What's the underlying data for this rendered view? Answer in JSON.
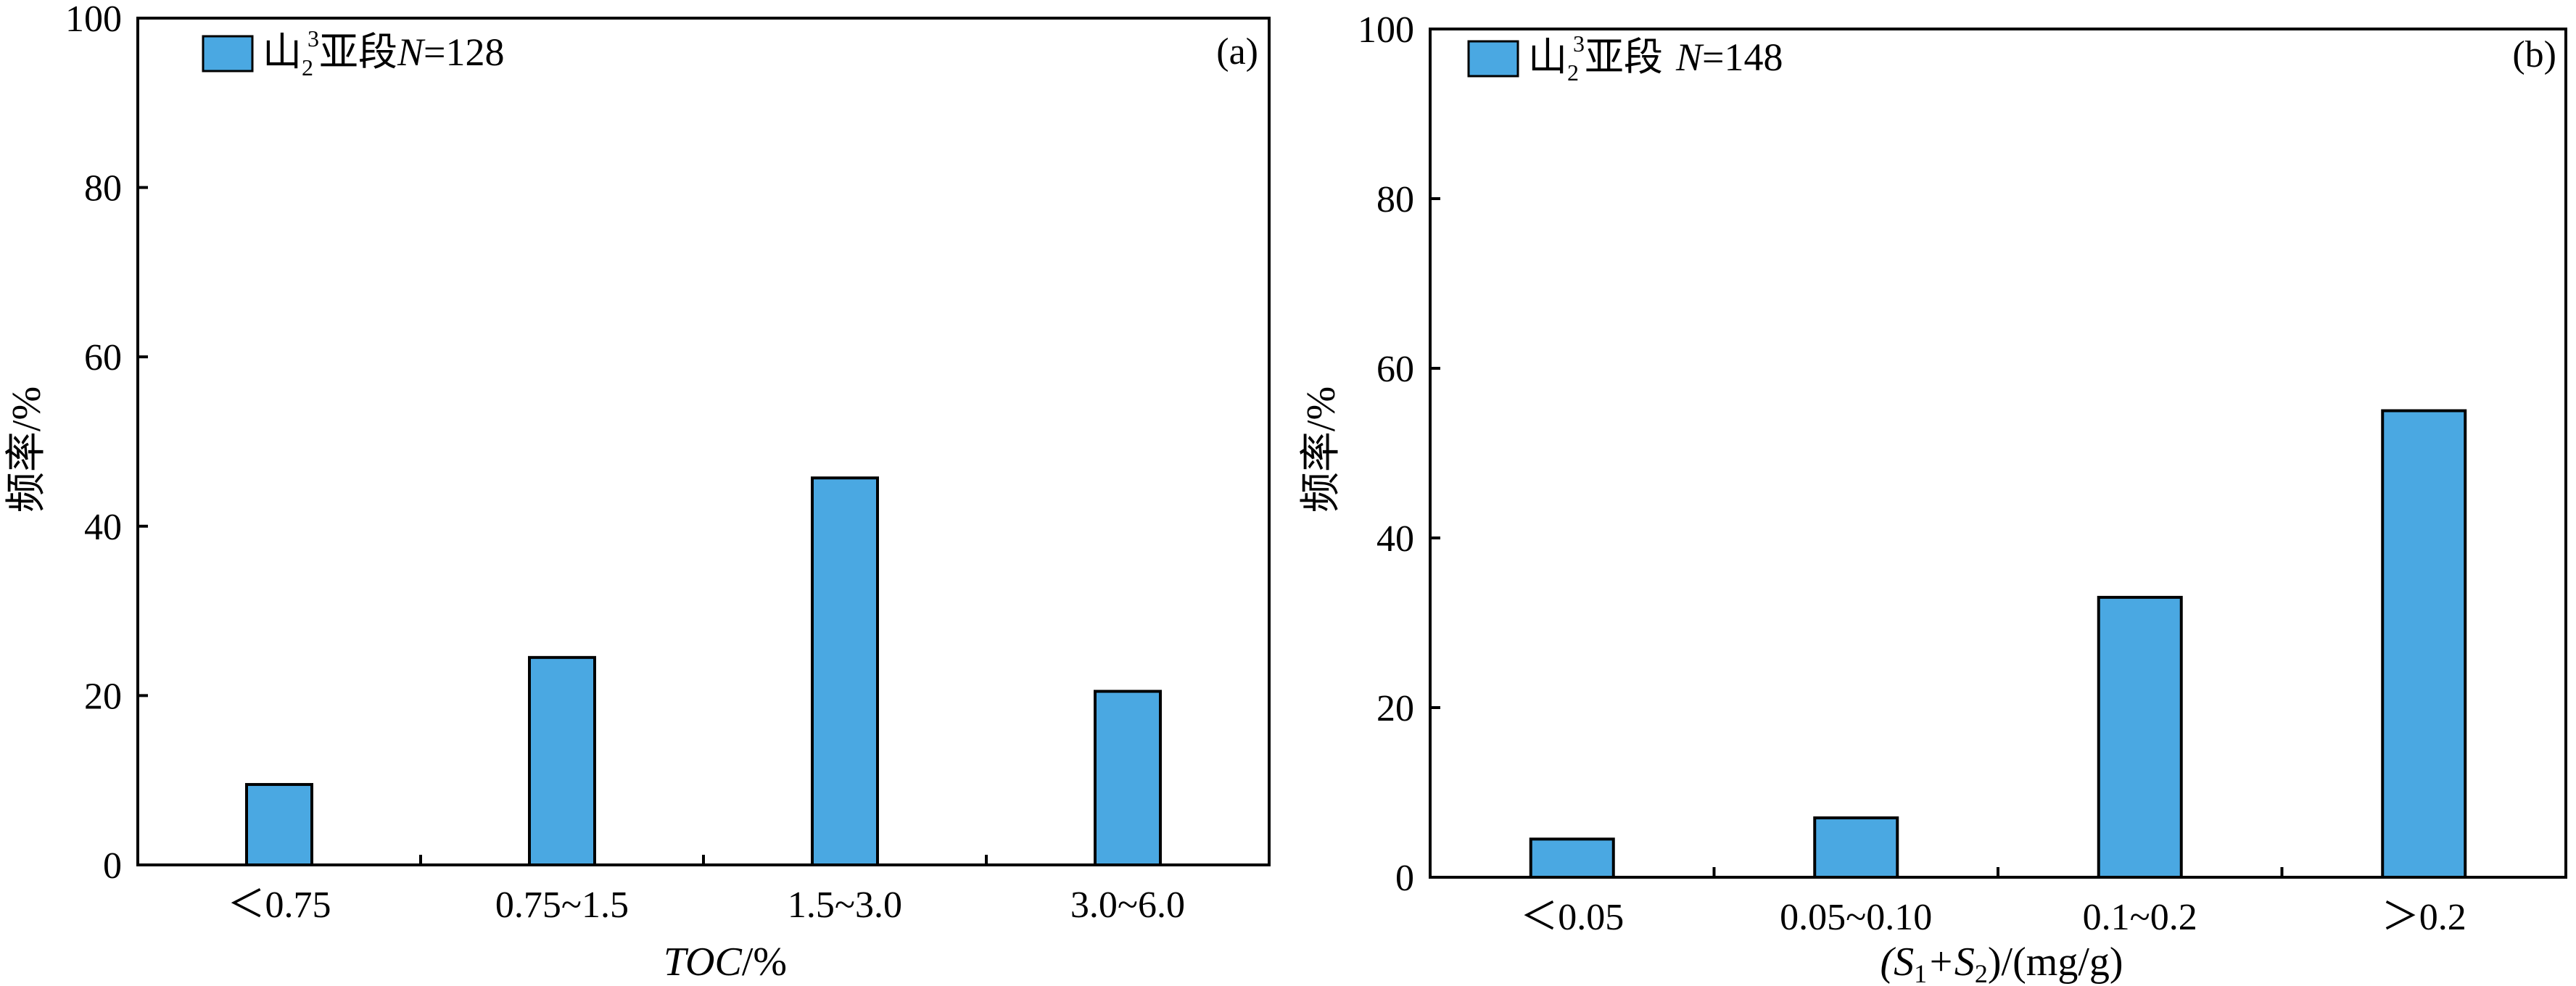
{
  "colors": {
    "bar": "#4aa8e2",
    "bar_stroke": "#000000",
    "axis": "#000000"
  },
  "chart_data": [
    {
      "type": "bar",
      "panel_label": "(a)",
      "legend": {
        "main": "山",
        "sub": "2",
        "sup": "3",
        "suffix": "亚段",
        "n_label": "N",
        "n_value": "=128"
      },
      "categories": [
        "＜0.75",
        "0.75~1.5",
        "1.5~3.0",
        "3.0~6.0"
      ],
      "values": [
        9.5,
        24.5,
        45.7,
        20.5
      ],
      "xlabel": {
        "main": "TOC",
        "unit": "/%"
      },
      "ylabel": "频率/%",
      "ylim": [
        0,
        100
      ],
      "yticks": [
        "0",
        "20",
        "40",
        "60",
        "80",
        "100"
      ]
    },
    {
      "type": "bar",
      "panel_label": "(b)",
      "legend": {
        "main": "山",
        "sub": "2",
        "sup": "3",
        "suffix": "亚段",
        "n_label": "N",
        "n_value": "=148"
      },
      "categories": [
        "＜0.05",
        "0.05~0.10",
        "0.1~0.2",
        "＞0.2"
      ],
      "values": [
        4.5,
        7.0,
        33.0,
        55.0
      ],
      "xlabel": {
        "p1": "(S",
        "s1": "1",
        "p2": "+S",
        "s2": "2",
        "p3": ")/(mg/g)"
      },
      "ylabel": "频率/%",
      "ylim": [
        0,
        100
      ],
      "yticks": [
        "0",
        "20",
        "40",
        "60",
        "80",
        "100"
      ]
    }
  ]
}
